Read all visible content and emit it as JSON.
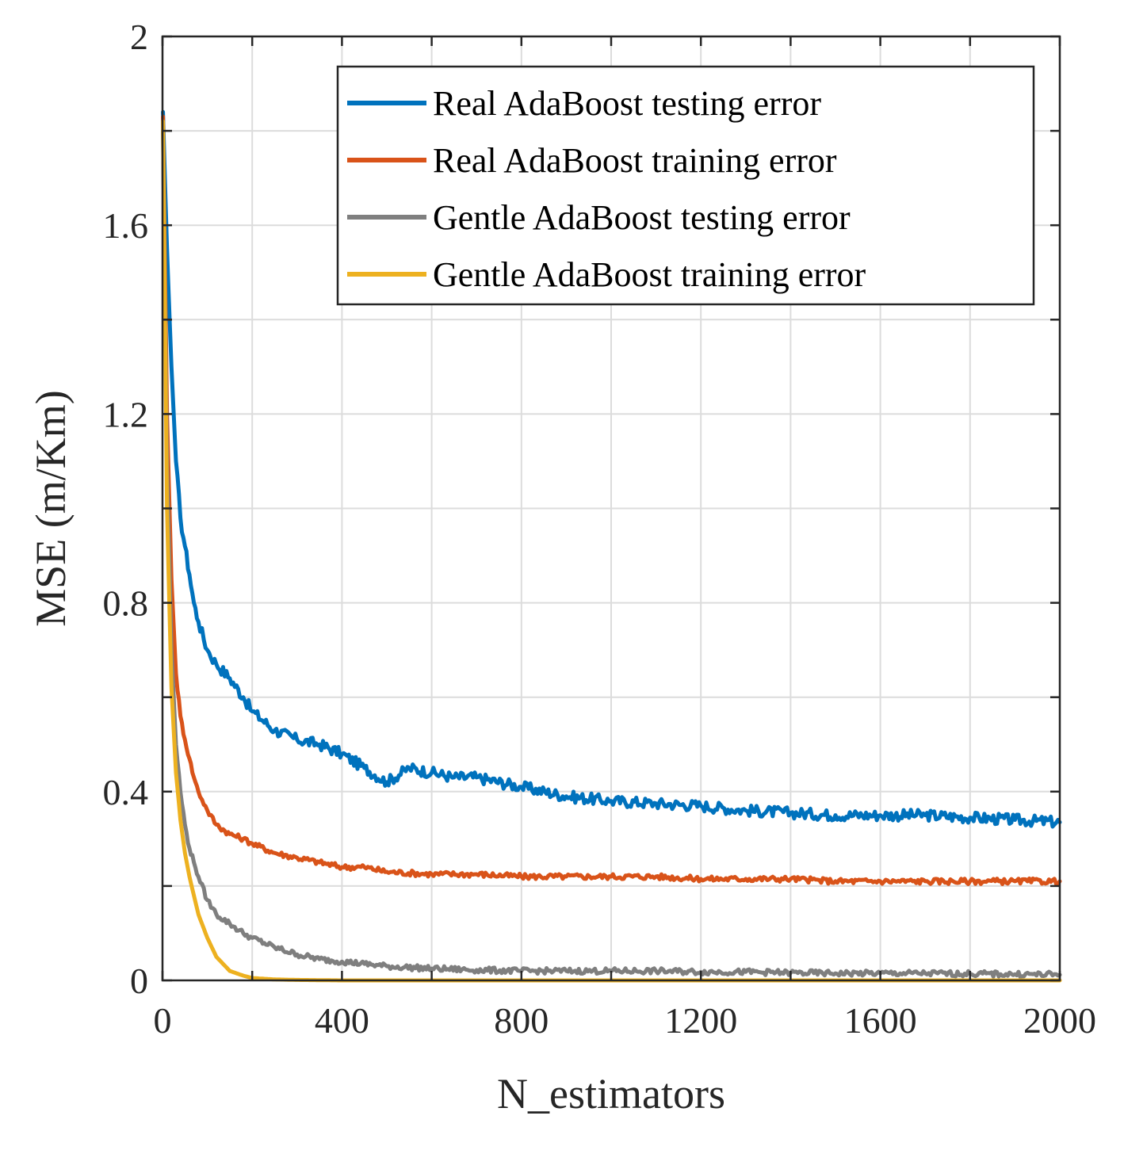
{
  "chart_data": {
    "type": "line",
    "xlabel": "N_estimators",
    "ylabel": "MSE (m/Km)",
    "xlim": [
      0,
      2000
    ],
    "ylim": [
      0,
      2
    ],
    "xticks": [
      0,
      400,
      800,
      1200,
      1600,
      2000
    ],
    "yticks": [
      0,
      0.4,
      0.8,
      1.2,
      1.6,
      2
    ],
    "xtick_labels": [
      "0",
      "400",
      "800",
      "1200",
      "1600",
      "2000"
    ],
    "ytick_labels": [
      "0",
      "0.4",
      "0.8",
      "1.2",
      "1.6",
      "2"
    ],
    "grid": true,
    "legend_position": "top-right",
    "series": [
      {
        "name": "Real AdaBoost testing error",
        "color": "#0072BD",
        "x": [
          1,
          10,
          20,
          30,
          40,
          50,
          60,
          70,
          80,
          100,
          120,
          150,
          180,
          200,
          250,
          300,
          350,
          400,
          450,
          500,
          550,
          600,
          650,
          700,
          800,
          900,
          1000,
          1100,
          1200,
          1300,
          1400,
          1500,
          1600,
          1700,
          1800,
          1900,
          2000
        ],
        "y": [
          1.84,
          1.55,
          1.3,
          1.1,
          0.98,
          0.92,
          0.86,
          0.8,
          0.76,
          0.7,
          0.67,
          0.64,
          0.6,
          0.57,
          0.53,
          0.51,
          0.5,
          0.48,
          0.45,
          0.42,
          0.45,
          0.44,
          0.43,
          0.43,
          0.41,
          0.39,
          0.38,
          0.375,
          0.37,
          0.36,
          0.355,
          0.35,
          0.35,
          0.35,
          0.345,
          0.34,
          0.335
        ]
      },
      {
        "name": "Real AdaBoost training error",
        "color": "#D95319",
        "x": [
          1,
          10,
          20,
          30,
          40,
          50,
          60,
          70,
          80,
          100,
          120,
          150,
          180,
          200,
          250,
          300,
          350,
          400,
          450,
          500,
          600,
          700,
          800,
          900,
          1000,
          1100,
          1200,
          1300,
          1400,
          1500,
          1600,
          1700,
          1800,
          1900,
          2000
        ],
        "y": [
          1.83,
          1.2,
          0.85,
          0.65,
          0.56,
          0.51,
          0.47,
          0.43,
          0.4,
          0.36,
          0.33,
          0.31,
          0.3,
          0.29,
          0.27,
          0.26,
          0.25,
          0.24,
          0.24,
          0.23,
          0.225,
          0.225,
          0.22,
          0.22,
          0.22,
          0.22,
          0.215,
          0.215,
          0.215,
          0.21,
          0.21,
          0.21,
          0.21,
          0.21,
          0.21
        ]
      },
      {
        "name": "Gentle AdaBoost testing error",
        "color": "#7F7F7F",
        "x": [
          1,
          10,
          20,
          30,
          40,
          50,
          60,
          70,
          80,
          100,
          120,
          150,
          180,
          200,
          250,
          300,
          350,
          400,
          450,
          500,
          600,
          700,
          800,
          900,
          1000,
          1100,
          1200,
          1300,
          1400,
          1500,
          1600,
          1700,
          1800,
          1900,
          2000
        ],
        "y": [
          1.8,
          1.1,
          0.7,
          0.5,
          0.4,
          0.33,
          0.28,
          0.25,
          0.22,
          0.17,
          0.14,
          0.12,
          0.1,
          0.09,
          0.07,
          0.055,
          0.045,
          0.04,
          0.035,
          0.03,
          0.025,
          0.022,
          0.02,
          0.02,
          0.02,
          0.02,
          0.018,
          0.018,
          0.016,
          0.015,
          0.015,
          0.015,
          0.014,
          0.013,
          0.012
        ]
      },
      {
        "name": "Gentle AdaBoost training error",
        "color": "#EDB120",
        "x": [
          1,
          10,
          20,
          30,
          40,
          50,
          60,
          70,
          80,
          100,
          120,
          150,
          180,
          200,
          250,
          300,
          400,
          600,
          800,
          1000,
          1200,
          1400,
          1600,
          1800,
          2000
        ],
        "y": [
          1.82,
          1.0,
          0.62,
          0.44,
          0.34,
          0.27,
          0.22,
          0.18,
          0.14,
          0.09,
          0.05,
          0.02,
          0.01,
          0.005,
          0.002,
          0.001,
          0.0,
          0.0,
          0.0,
          0.0,
          0.0,
          0.0,
          0.0,
          0.0,
          0.0
        ]
      }
    ]
  }
}
